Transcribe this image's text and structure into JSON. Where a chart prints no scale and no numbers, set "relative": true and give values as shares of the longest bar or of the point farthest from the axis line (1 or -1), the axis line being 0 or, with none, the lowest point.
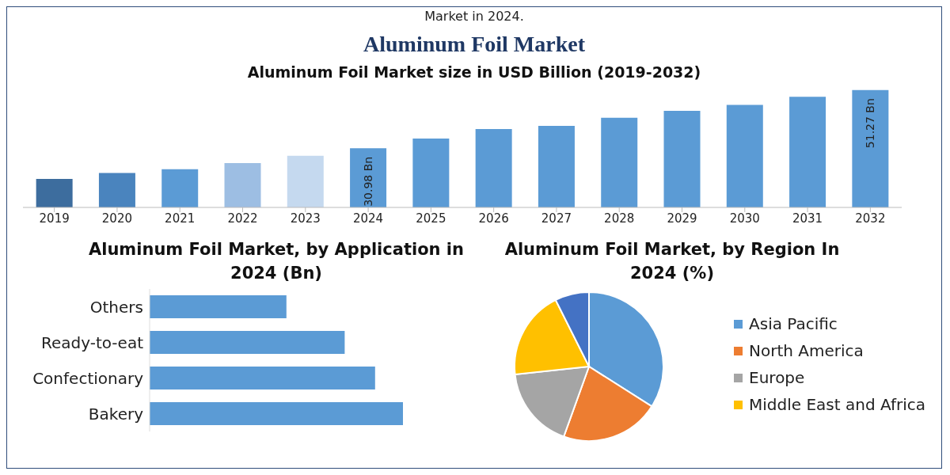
{
  "chart_data": [
    {
      "type": "bar",
      "title": "Aluminum Foil Market",
      "subtitle": "Aluminum Foil Market size in USD Billion (2019-2032)",
      "annotations": [
        "Market in 2024."
      ],
      "categories": [
        "2019",
        "2020",
        "2021",
        "2022",
        "2023",
        "2024",
        "2025",
        "2026",
        "2027",
        "2028",
        "2029",
        "2030",
        "2031",
        "2032"
      ],
      "values": [
        20.3,
        22.4,
        23.7,
        25.8,
        28.4,
        30.98,
        34.4,
        37.7,
        38.8,
        41.6,
        44.0,
        46.1,
        48.9,
        51.27
      ],
      "value_labels": [
        null,
        null,
        null,
        null,
        null,
        "30.98 Bn",
        null,
        null,
        null,
        null,
        null,
        null,
        null,
        "51.27 Bn"
      ],
      "colors": [
        "#3d6d9e",
        "#4a84be",
        "#5b9bd5",
        "#9dbee3",
        "#c5d9ef",
        "#5b9bd5",
        "#5b9bd5",
        "#5b9bd5",
        "#5b9bd5",
        "#5b9bd5",
        "#5b9bd5",
        "#5b9bd5",
        "#5b9bd5",
        "#5b9bd5"
      ],
      "ylim": [
        10.4,
        52
      ]
    },
    {
      "type": "bar",
      "orientation": "horizontal",
      "relative": true,
      "title": "Aluminum Foil Market, by Application in 2024 (Bn)",
      "categories": [
        "Others",
        "Ready-to-eat",
        "Confectionary",
        "Bakery"
      ],
      "values": [
        0.54,
        0.77,
        0.89,
        1
      ],
      "color": "#5b9bd5"
    },
    {
      "type": "pie",
      "title": "Aluminum Foil Market, by Region In 2024 (%)",
      "categories": [
        "Asia Pacific",
        "North America",
        "Europe",
        "Middle East and Africa",
        null
      ],
      "values": [
        34,
        21.5,
        17.8,
        19.3,
        7.4
      ],
      "colors": [
        "#5b9bd5",
        "#ed7d31",
        "#a5a5a5",
        "#ffc000",
        "#4472c4"
      ],
      "legend": "right"
    }
  ]
}
